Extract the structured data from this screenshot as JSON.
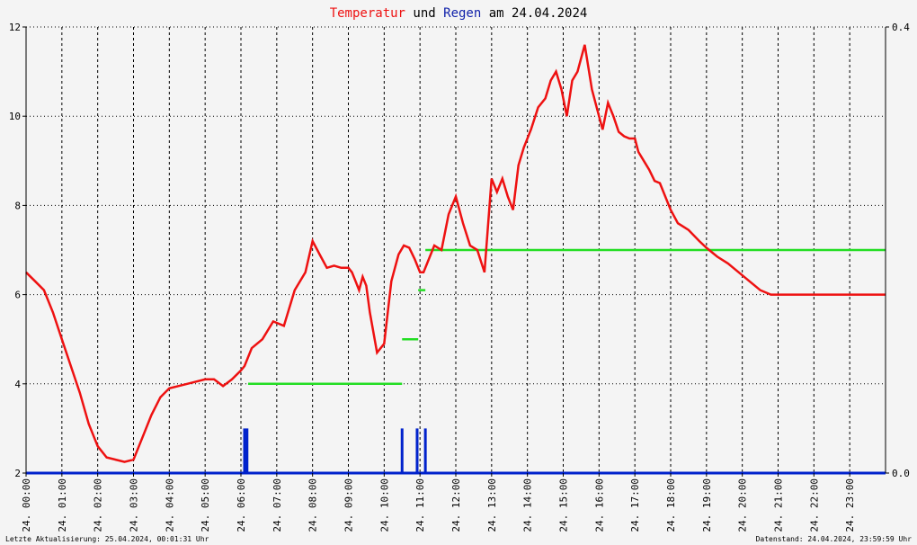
{
  "chart_data": {
    "type": "line",
    "title_parts": [
      {
        "text": "Temperatur",
        "color": "#ee1111"
      },
      {
        "text": " und ",
        "color": "#000000"
      },
      {
        "text": "Regen",
        "color": "#1122aa"
      },
      {
        "text": " am 24.04.2024",
        "color": "#000000"
      }
    ],
    "x_range_hours": [
      0,
      24
    ],
    "x_tick_labels": [
      "24. 00:00",
      "24. 01:00",
      "24. 02:00",
      "24. 03:00",
      "24. 04:00",
      "24. 05:00",
      "24. 06:00",
      "24. 07:00",
      "24. 08:00",
      "24. 09:00",
      "24. 10:00",
      "24. 11:00",
      "24. 12:00",
      "24. 13:00",
      "24. 14:00",
      "24. 15:00",
      "24. 16:00",
      "24. 17:00",
      "24. 18:00",
      "24. 19:00",
      "24. 20:00",
      "24. 21:00",
      "24. 22:00",
      "24. 23:00"
    ],
    "y_left": {
      "range": [
        2,
        12
      ],
      "ticks": [
        "2",
        "4",
        "6",
        "8",
        "10",
        "12"
      ]
    },
    "y_right": {
      "range": [
        0,
        0.4
      ],
      "ticks": [
        "0.0",
        "0.4"
      ]
    },
    "grid": true,
    "series": [
      {
        "name": "Temperatur",
        "color": "#ee1111",
        "hours": [
          0,
          0.25,
          0.5,
          0.75,
          1,
          1.25,
          1.5,
          1.75,
          2,
          2.25,
          2.5,
          2.75,
          3,
          3.25,
          3.5,
          3.75,
          4,
          4.25,
          4.5,
          4.75,
          5,
          5.25,
          5.5,
          5.75,
          6,
          6.1,
          6.3,
          6.6,
          6.9,
          7.2,
          7.5,
          7.8,
          8.0,
          8.2,
          8.4,
          8.6,
          8.8,
          9.0,
          9.1,
          9.2,
          9.3,
          9.4,
          9.5,
          9.6,
          9.8,
          10.0,
          10.2,
          10.4,
          10.55,
          10.7,
          10.85,
          11.0,
          11.1,
          11.2,
          11.4,
          11.6,
          11.8,
          12.0,
          12.2,
          12.4,
          12.6,
          12.8,
          13.0,
          13.15,
          13.3,
          13.45,
          13.6,
          13.75,
          13.9,
          14.1,
          14.3,
          14.5,
          14.65,
          14.8,
          14.95,
          15.1,
          15.25,
          15.4,
          15.6,
          15.8,
          16.0,
          16.1,
          16.25,
          16.4,
          16.55,
          16.7,
          16.85,
          17.0,
          17.1,
          17.25,
          17.4,
          17.55,
          17.7,
          17.85,
          18.0,
          18.2,
          18.5,
          18.8,
          19.0,
          19.3,
          19.6,
          19.9,
          20.2,
          20.5,
          20.8,
          21.1,
          21.4,
          21.7,
          22.0,
          22.3,
          22.6,
          22.9,
          23.2,
          23.5,
          23.8,
          24
        ],
        "values": [
          6.5,
          6.3,
          6.1,
          5.6,
          5.0,
          4.4,
          3.8,
          3.1,
          2.6,
          2.35,
          2.3,
          2.25,
          2.3,
          2.8,
          3.3,
          3.7,
          3.9,
          3.95,
          4.0,
          4.05,
          4.1,
          4.1,
          3.95,
          4.1,
          4.3,
          4.4,
          4.8,
          5.0,
          5.4,
          5.3,
          6.1,
          6.5,
          7.2,
          6.9,
          6.6,
          6.65,
          6.6,
          6.6,
          6.5,
          6.3,
          6.1,
          6.4,
          6.2,
          5.6,
          4.7,
          4.9,
          6.3,
          6.9,
          7.1,
          7.05,
          6.8,
          6.5,
          6.5,
          6.7,
          7.1,
          7.0,
          7.8,
          8.2,
          7.6,
          7.1,
          7.0,
          6.5,
          8.6,
          8.3,
          8.6,
          8.2,
          7.9,
          8.9,
          9.3,
          9.7,
          10.2,
          10.4,
          10.8,
          11.0,
          10.6,
          10.0,
          10.8,
          11.0,
          11.6,
          10.6,
          10.0,
          9.7,
          10.3,
          10.0,
          9.65,
          9.55,
          9.5,
          9.5,
          9.2,
          9.0,
          8.8,
          8.55,
          8.5,
          8.2,
          7.9,
          7.6,
          7.45,
          7.2,
          7.05,
          6.85,
          6.7,
          6.5,
          6.3,
          6.1,
          6.0,
          6.0,
          6.0,
          6.0,
          6.0,
          6.0,
          6.0,
          6.0,
          6.0,
          6.0,
          6.0,
          6.0
        ]
      },
      {
        "name": "Regen",
        "color": "#0022cc",
        "bars": [
          {
            "hour": 6.1,
            "value": 0.04
          },
          {
            "hour": 6.17,
            "value": 0.04
          },
          {
            "hour": 10.5,
            "value": 0.04
          },
          {
            "hour": 10.92,
            "value": 0.04
          },
          {
            "hour": 11.15,
            "value": 0.04
          }
        ]
      },
      {
        "name": "Regen Summe",
        "color": "#22dd22",
        "steps": [
          {
            "from": 6.2,
            "to": 10.5,
            "value": 0.08
          },
          {
            "from": 10.5,
            "to": 10.95,
            "value": 0.12
          },
          {
            "from": 10.95,
            "to": 11.15,
            "value": 0.164
          },
          {
            "from": 11.15,
            "to": 24,
            "value": 0.2
          }
        ]
      }
    ]
  },
  "footer": {
    "left": "Letzte Aktualisierung: 25.04.2024, 00:01:31 Uhr",
    "right": "Datenstand: 24.04.2024, 23:59:59 Uhr"
  }
}
